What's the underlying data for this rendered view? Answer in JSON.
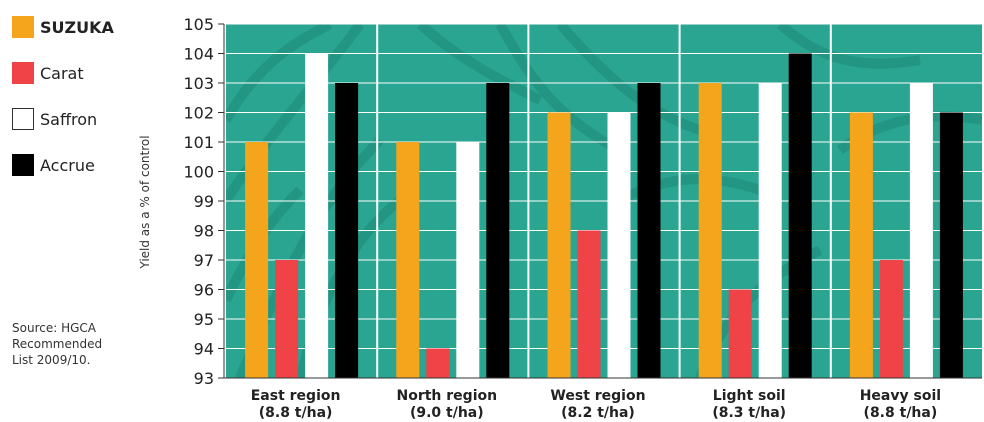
{
  "chart_data": {
    "type": "bar",
    "categories": [
      [
        "East region",
        "(8.8 t/ha)"
      ],
      [
        "North region",
        "(9.0 t/ha)"
      ],
      [
        "West region",
        "(8.2 t/ha)"
      ],
      [
        "Light soil",
        "(8.3 t/ha)"
      ],
      [
        "Heavy soil",
        "(8.8 t/ha)"
      ]
    ],
    "series": [
      {
        "name": "SUZUKA",
        "color": "#f5a51c",
        "values": [
          101,
          101,
          102,
          103,
          102
        ]
      },
      {
        "name": "Carat",
        "color": "#ef4347",
        "values": [
          97,
          94,
          98,
          96,
          97
        ]
      },
      {
        "name": "Saffron",
        "color": "#ffffff",
        "values": [
          104,
          101,
          102,
          103,
          103
        ]
      },
      {
        "name": "Accrue",
        "color": "#000000",
        "values": [
          103,
          103,
          103,
          104,
          102
        ]
      }
    ],
    "ylabel": "Yield as a % of control",
    "ylim": [
      93,
      105
    ],
    "yticks": [
      93,
      94,
      95,
      96,
      97,
      98,
      99,
      100,
      101,
      102,
      103,
      104,
      105
    ],
    "grid": true,
    "legend_position": "left",
    "background_color": "#2aa592"
  },
  "source": {
    "lines": [
      "Source: HGCA",
      "Recommended",
      "List 2009/10."
    ]
  }
}
